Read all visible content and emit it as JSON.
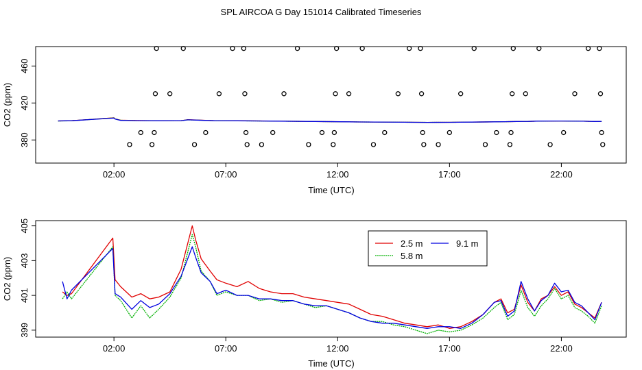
{
  "figure": {
    "title": "SPL AIRCOA G  Day 151014  Calibrated Timeseries"
  },
  "chart_data": [
    {
      "type": "scatter+line",
      "title": "SPL AIRCOA G  Day 151014  Calibrated Timeseries",
      "xlabel": "Time (UTC)",
      "ylabel": "CO2 (ppm)",
      "xlim": [
        -1.5,
        24.9
      ],
      "ylim": [
        355,
        481
      ],
      "x_ticks": [
        2,
        7,
        12,
        17,
        22
      ],
      "x_tick_labels": [
        "02:00",
        "07:00",
        "12:00",
        "17:00",
        "22:00"
      ],
      "y_ticks": [
        380,
        420,
        460
      ],
      "y_tick_labels": [
        "380",
        "420",
        "460"
      ],
      "points": [
        {
          "x": 2.7,
          "y": 375
        },
        {
          "x": 3.2,
          "y": 388
        },
        {
          "x": 3.7,
          "y": 375
        },
        {
          "x": 3.8,
          "y": 388
        },
        {
          "x": 3.85,
          "y": 430
        },
        {
          "x": 3.9,
          "y": 479
        },
        {
          "x": 4.5,
          "y": 430
        },
        {
          "x": 5.1,
          "y": 479
        },
        {
          "x": 5.6,
          "y": 375
        },
        {
          "x": 6.1,
          "y": 388
        },
        {
          "x": 6.7,
          "y": 430
        },
        {
          "x": 7.3,
          "y": 479
        },
        {
          "x": 7.8,
          "y": 479
        },
        {
          "x": 7.85,
          "y": 430
        },
        {
          "x": 7.9,
          "y": 388
        },
        {
          "x": 7.95,
          "y": 375
        },
        {
          "x": 8.6,
          "y": 375
        },
        {
          "x": 9.1,
          "y": 388
        },
        {
          "x": 9.6,
          "y": 430
        },
        {
          "x": 10.2,
          "y": 479
        },
        {
          "x": 10.7,
          "y": 375
        },
        {
          "x": 11.3,
          "y": 388
        },
        {
          "x": 11.8,
          "y": 375
        },
        {
          "x": 11.85,
          "y": 388
        },
        {
          "x": 11.9,
          "y": 430
        },
        {
          "x": 11.95,
          "y": 479
        },
        {
          "x": 12.5,
          "y": 430
        },
        {
          "x": 13.1,
          "y": 479
        },
        {
          "x": 13.6,
          "y": 375
        },
        {
          "x": 14.1,
          "y": 388
        },
        {
          "x": 14.7,
          "y": 430
        },
        {
          "x": 15.2,
          "y": 479
        },
        {
          "x": 15.7,
          "y": 479
        },
        {
          "x": 15.75,
          "y": 430
        },
        {
          "x": 15.8,
          "y": 388
        },
        {
          "x": 15.85,
          "y": 375
        },
        {
          "x": 16.5,
          "y": 375
        },
        {
          "x": 17.0,
          "y": 388
        },
        {
          "x": 17.5,
          "y": 430
        },
        {
          "x": 18.1,
          "y": 479
        },
        {
          "x": 18.6,
          "y": 375
        },
        {
          "x": 19.1,
          "y": 388
        },
        {
          "x": 19.7,
          "y": 375
        },
        {
          "x": 19.75,
          "y": 388
        },
        {
          "x": 19.8,
          "y": 430
        },
        {
          "x": 19.85,
          "y": 479
        },
        {
          "x": 20.4,
          "y": 430
        },
        {
          "x": 21.0,
          "y": 479
        },
        {
          "x": 21.5,
          "y": 375
        },
        {
          "x": 22.1,
          "y": 388
        },
        {
          "x": 22.6,
          "y": 430
        },
        {
          "x": 23.2,
          "y": 479
        },
        {
          "x": 23.7,
          "y": 479
        },
        {
          "x": 23.75,
          "y": 430
        },
        {
          "x": 23.8,
          "y": 388
        },
        {
          "x": 23.85,
          "y": 375
        }
      ],
      "series": [
        {
          "name": "2.5 m",
          "color": "#e00000",
          "x": [
            -0.5,
            0.1,
            2.0,
            2.05,
            2.3,
            3.0,
            4.0,
            5.0,
            5.3,
            5.7,
            6.5,
            7.5,
            9.0,
            11.0,
            13.0,
            15.0,
            16.0,
            17.0,
            18.0,
            19.0,
            19.5,
            20.0,
            20.5,
            21.0,
            22.0,
            23.0,
            23.5,
            23.8
          ],
          "y": [
            400.6,
            400.8,
            404.0,
            402.8,
            401.4,
            401.0,
            400.7,
            400.9,
            401.9,
            401.6,
            400.9,
            400.8,
            400.5,
            400.0,
            399.5,
            399.2,
            399.0,
            399.1,
            399.3,
            399.6,
            399.8,
            400.0,
            400.1,
            400.4,
            400.5,
            400.3,
            400.0,
            400.1
          ]
        },
        {
          "name": "5.8 m",
          "color": "#00b000",
          "x": [
            -0.5,
            0.1,
            2.0,
            2.05,
            2.3,
            3.0,
            4.0,
            5.0,
            5.3,
            5.7,
            6.5,
            7.5,
            9.0,
            11.0,
            13.0,
            15.0,
            16.0,
            17.0,
            18.0,
            19.0,
            19.5,
            20.0,
            20.5,
            21.0,
            22.0,
            23.0,
            23.5,
            23.8
          ],
          "y": [
            400.5,
            400.7,
            403.9,
            402.7,
            401.3,
            400.9,
            400.7,
            400.9,
            401.8,
            401.5,
            400.8,
            400.7,
            400.4,
            400.0,
            399.5,
            399.2,
            399.0,
            399.1,
            399.3,
            399.6,
            399.8,
            400.0,
            400.1,
            400.4,
            400.5,
            400.3,
            400.0,
            400.1
          ]
        },
        {
          "name": "9.1 m",
          "color": "#0000e0",
          "x": [
            -0.5,
            0.1,
            2.0,
            2.05,
            2.3,
            3.0,
            4.0,
            5.0,
            5.3,
            5.7,
            6.5,
            7.5,
            9.0,
            11.0,
            13.0,
            15.0,
            16.0,
            17.0,
            18.0,
            19.0,
            19.5,
            20.0,
            20.5,
            21.0,
            22.0,
            23.0,
            23.5,
            23.8
          ],
          "y": [
            400.6,
            400.8,
            403.7,
            402.6,
            401.2,
            400.9,
            400.7,
            400.9,
            401.8,
            401.5,
            400.8,
            400.7,
            400.4,
            400.0,
            399.5,
            399.2,
            399.0,
            399.1,
            399.3,
            399.6,
            399.8,
            400.0,
            400.1,
            400.4,
            400.5,
            400.3,
            400.0,
            400.1
          ]
        }
      ]
    },
    {
      "type": "line",
      "xlabel": "Time (UTC)",
      "ylabel": "CO2 (ppm)",
      "xlim": [
        -1.5,
        24.9
      ],
      "ylim": [
        398.6,
        405.3
      ],
      "x_ticks": [
        2,
        7,
        12,
        17,
        22
      ],
      "x_tick_labels": [
        "02:00",
        "07:00",
        "12:00",
        "17:00",
        "22:00"
      ],
      "y_ticks": [
        399,
        401,
        403,
        405
      ],
      "y_tick_labels": [
        "399",
        "401",
        "403",
        "405"
      ],
      "legend": {
        "position": "top-right",
        "entries": [
          "2.5 m",
          "9.1 m",
          "5.8 m"
        ]
      },
      "series": [
        {
          "name": "2.5 m",
          "color": "#e00000",
          "x": [
            -0.3,
            -0.1,
            0.1,
            1.95,
            2.05,
            2.3,
            2.8,
            3.2,
            3.6,
            4.0,
            4.5,
            5.0,
            5.5,
            5.65,
            5.9,
            6.3,
            6.6,
            7.0,
            7.5,
            8.0,
            8.5,
            9.0,
            9.5,
            10.0,
            10.5,
            11.0,
            11.5,
            12.0,
            12.5,
            13.0,
            13.5,
            14.0,
            14.5,
            15.0,
            15.5,
            16.0,
            16.5,
            17.0,
            17.5,
            18.0,
            18.5,
            19.0,
            19.3,
            19.6,
            19.9,
            20.2,
            20.5,
            20.8,
            21.1,
            21.4,
            21.7,
            22.0,
            22.3,
            22.6,
            22.9,
            23.2,
            23.5,
            23.8
          ],
          "y": [
            401.2,
            401.0,
            401.1,
            404.3,
            401.9,
            401.5,
            400.9,
            401.1,
            400.8,
            400.9,
            401.2,
            402.5,
            405.0,
            404.2,
            403.1,
            402.4,
            401.9,
            401.7,
            401.5,
            401.8,
            401.4,
            401.2,
            401.1,
            401.1,
            400.9,
            400.8,
            400.7,
            400.6,
            400.5,
            400.2,
            399.9,
            399.8,
            399.6,
            399.4,
            399.3,
            399.2,
            399.3,
            399.1,
            399.2,
            399.5,
            399.9,
            400.6,
            400.8,
            400.0,
            400.2,
            401.6,
            400.6,
            400.1,
            400.8,
            401.0,
            401.5,
            401.0,
            401.2,
            400.5,
            400.3,
            400.0,
            399.7,
            400.6
          ]
        },
        {
          "name": "5.8 m",
          "color": "#00b000",
          "x": [
            -0.3,
            -0.1,
            0.1,
            1.95,
            2.05,
            2.3,
            2.8,
            3.2,
            3.6,
            4.0,
            4.5,
            5.0,
            5.5,
            5.65,
            5.9,
            6.3,
            6.6,
            7.0,
            7.5,
            8.0,
            8.5,
            9.0,
            9.5,
            10.0,
            10.5,
            11.0,
            11.5,
            12.0,
            12.5,
            13.0,
            13.5,
            14.0,
            14.5,
            15.0,
            15.5,
            16.0,
            16.5,
            17.0,
            17.5,
            18.0,
            18.5,
            19.0,
            19.3,
            19.6,
            19.9,
            20.2,
            20.5,
            20.8,
            21.1,
            21.4,
            21.7,
            22.0,
            22.3,
            22.6,
            22.9,
            23.2,
            23.5,
            23.8
          ],
          "y": [
            400.8,
            401.2,
            400.8,
            403.8,
            401.0,
            400.7,
            399.7,
            400.4,
            399.7,
            400.2,
            400.9,
            402.0,
            404.5,
            403.8,
            402.4,
            401.8,
            401.0,
            401.2,
            401.0,
            401.0,
            400.7,
            400.8,
            400.6,
            400.7,
            400.5,
            400.3,
            400.4,
            400.2,
            400.0,
            399.7,
            399.5,
            399.5,
            399.3,
            399.2,
            399.0,
            398.8,
            399.0,
            398.9,
            399.0,
            399.3,
            399.7,
            400.3,
            400.6,
            399.6,
            399.9,
            401.3,
            400.3,
            399.8,
            400.4,
            400.8,
            401.4,
            400.8,
            401.0,
            400.3,
            400.1,
            399.8,
            399.4,
            400.4
          ]
        },
        {
          "name": "9.1 m",
          "color": "#0000e0",
          "x": [
            -0.3,
            -0.1,
            0.1,
            1.95,
            2.05,
            2.3,
            2.8,
            3.2,
            3.6,
            4.0,
            4.5,
            5.0,
            5.5,
            5.65,
            5.9,
            6.3,
            6.6,
            7.0,
            7.5,
            8.0,
            8.5,
            9.0,
            9.5,
            10.0,
            10.5,
            11.0,
            11.5,
            12.0,
            12.5,
            13.0,
            13.5,
            14.0,
            14.5,
            15.0,
            15.5,
            16.0,
            16.5,
            17.0,
            17.5,
            18.0,
            18.5,
            19.0,
            19.3,
            19.6,
            19.9,
            20.2,
            20.5,
            20.8,
            21.1,
            21.4,
            21.7,
            22.0,
            22.3,
            22.6,
            22.9,
            23.2,
            23.5,
            23.8
          ],
          "y": [
            401.8,
            400.8,
            401.3,
            403.7,
            401.1,
            400.9,
            400.2,
            400.7,
            400.3,
            400.5,
            401.1,
            402.1,
            403.8,
            403.2,
            402.3,
            401.8,
            401.1,
            401.3,
            401.0,
            401.0,
            400.8,
            400.8,
            400.7,
            400.7,
            400.5,
            400.4,
            400.4,
            400.2,
            400.0,
            399.7,
            399.5,
            399.4,
            399.4,
            399.3,
            399.2,
            399.1,
            399.2,
            399.2,
            399.1,
            399.4,
            399.9,
            400.6,
            400.7,
            399.8,
            400.1,
            401.8,
            400.8,
            400.1,
            400.7,
            401.0,
            401.7,
            401.2,
            401.3,
            400.6,
            400.4,
            400.0,
            399.6,
            400.6
          ]
        }
      ]
    }
  ]
}
